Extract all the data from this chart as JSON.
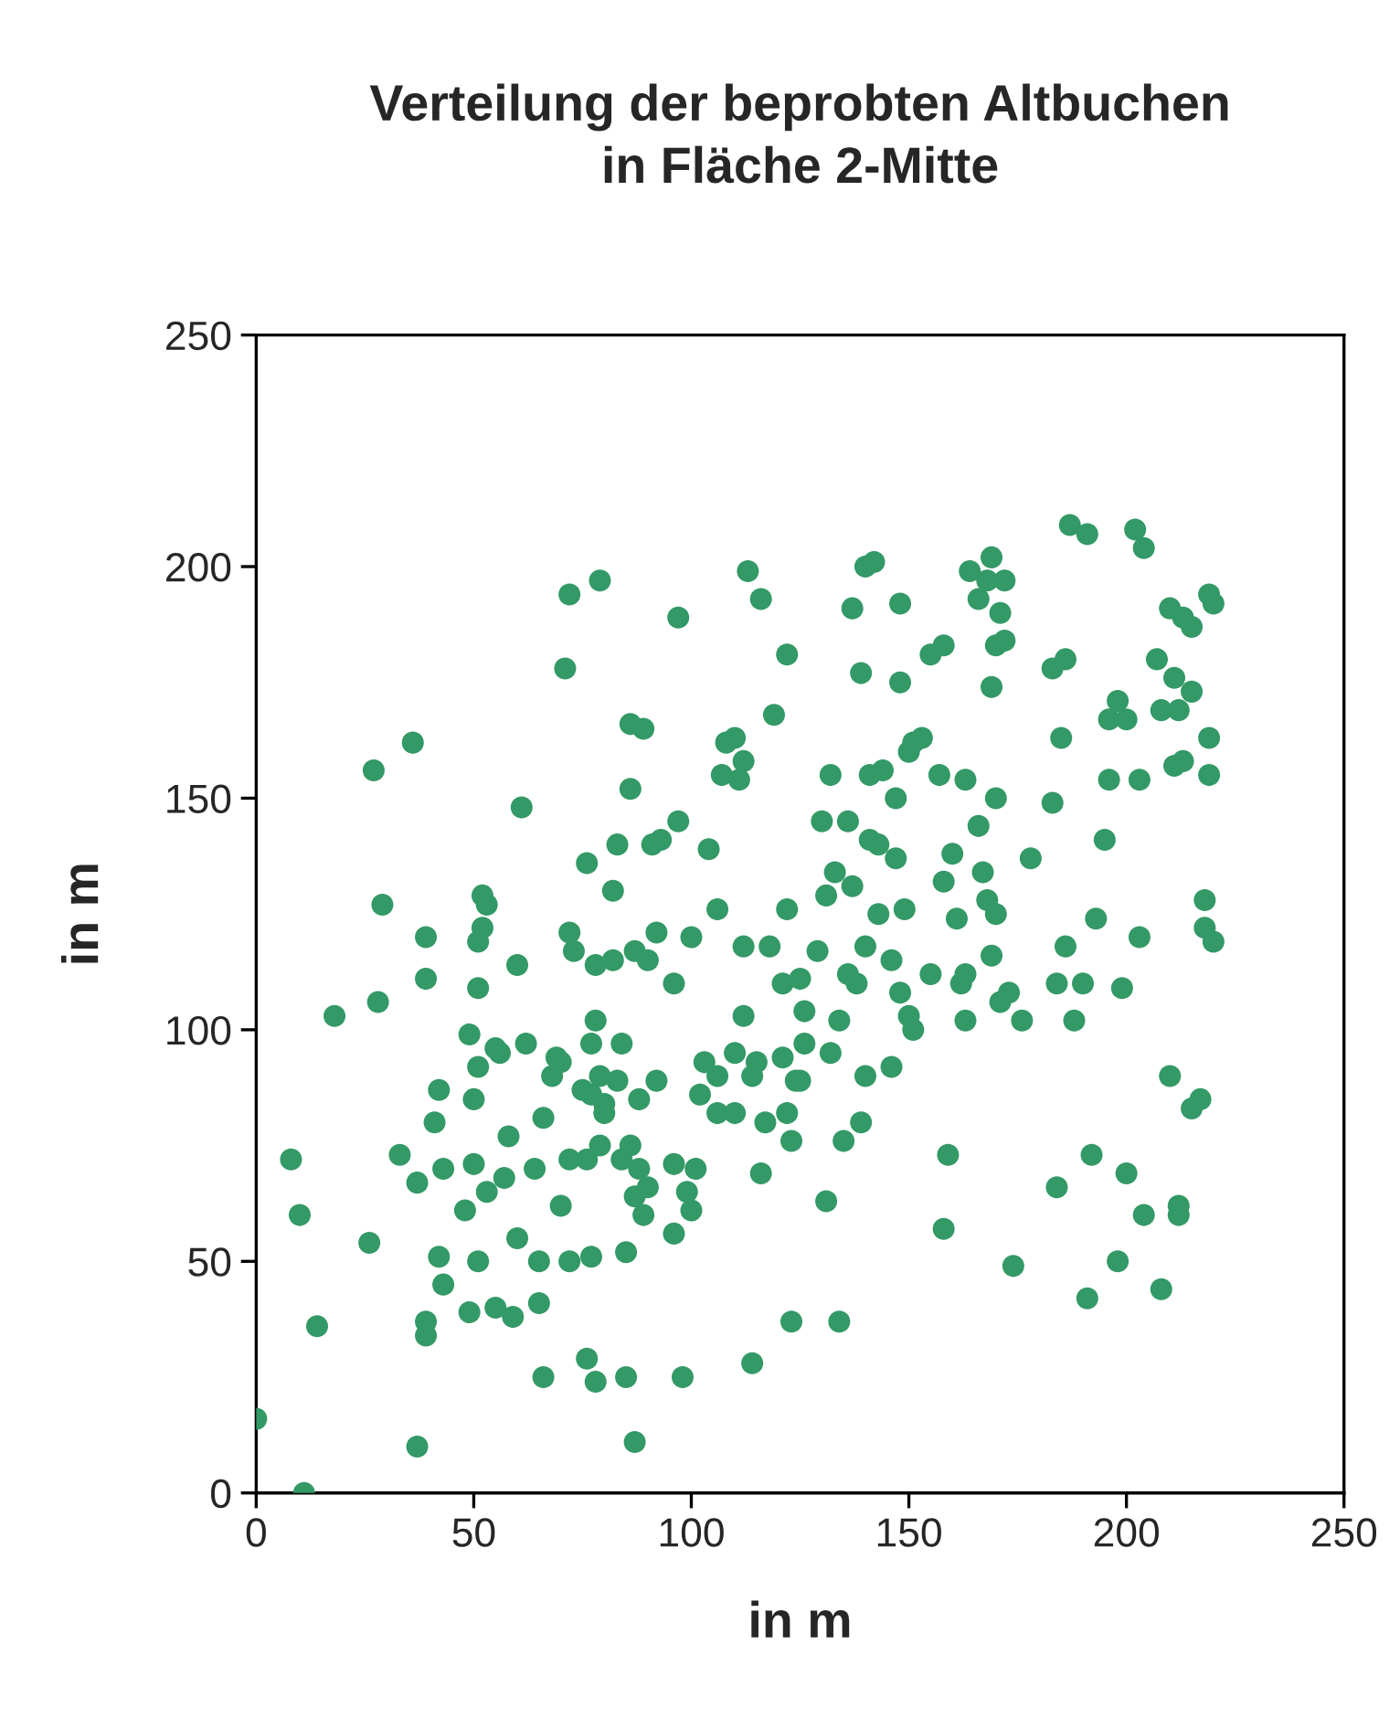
{
  "chart_data": {
    "type": "scatter",
    "title": "Verteilung der beprobten Altbuchen\nin Fläche 2-Mitte",
    "xlabel": "in m",
    "ylabel": "in m",
    "xlim": [
      0,
      250
    ],
    "ylim": [
      0,
      250
    ],
    "xticks": [
      0,
      50,
      100,
      150,
      200,
      250
    ],
    "yticks": [
      0,
      50,
      100,
      150,
      200,
      250
    ],
    "grid": false,
    "marker": "circle",
    "series": [
      {
        "color": "#339966",
        "x": [
          72,
          79,
          71,
          97,
          113,
          116,
          137,
          140,
          142,
          139,
          148,
          122,
          148,
          155,
          158,
          164,
          166,
          168,
          169,
          171,
          172,
          169,
          170,
          172,
          183,
          187,
          191,
          202,
          204,
          186,
          207,
          210,
          213,
          215,
          215,
          211,
          219,
          220,
          208,
          212,
          196,
          198,
          200,
          36,
          27,
          61,
          86,
          89,
          86,
          83,
          91,
          108,
          110,
          112,
          107,
          111,
          104,
          119,
          130,
          132,
          150,
          147,
          144,
          151,
          153,
          157,
          141,
          141,
          136,
          147,
          163,
          170,
          166,
          185,
          183,
          196,
          195,
          203,
          211,
          213,
          219,
          219,
          76,
          82,
          97,
          93,
          29,
          28,
          18,
          39,
          39,
          52,
          53,
          52,
          51,
          60,
          55,
          51,
          62,
          70,
          72,
          73,
          78,
          87,
          90,
          92,
          100,
          96,
          106,
          112,
          110,
          112,
          118,
          121,
          122,
          126,
          129,
          131,
          133,
          136,
          138,
          134,
          140,
          143,
          146,
          148,
          149,
          150,
          151,
          155,
          158,
          160,
          161,
          162,
          163,
          167,
          168,
          169,
          170,
          171,
          173,
          176,
          178,
          184,
          186,
          188,
          190,
          193,
          199,
          203,
          218,
          218,
          220,
          143,
          137,
          125,
          115,
          132,
          121,
          163,
          8,
          10,
          26,
          33,
          37,
          41,
          42,
          43,
          42,
          43,
          48,
          50,
          50,
          51,
          49,
          51,
          53,
          57,
          58,
          56,
          60,
          64,
          65,
          66,
          68,
          69,
          72,
          70,
          75,
          77,
          76,
          79,
          80,
          80,
          79,
          83,
          77,
          78,
          82,
          84,
          84,
          86,
          87,
          88,
          89,
          88,
          90,
          92,
          96,
          96,
          99,
          101,
          102,
          103,
          100,
          106,
          106,
          110,
          114,
          117,
          116,
          122,
          123,
          124,
          126,
          131,
          135,
          139,
          140,
          146,
          159,
          158,
          174,
          184,
          192,
          191,
          198,
          200,
          204,
          208,
          210,
          212,
          212,
          215,
          217,
          125,
          0,
          11,
          14,
          37,
          39,
          39,
          55,
          49,
          59,
          65,
          66,
          76,
          78,
          85,
          87,
          98,
          114,
          123,
          134,
          72,
          77,
          85
        ],
        "values": [
          194,
          197,
          178,
          189,
          199,
          193,
          191,
          200,
          201,
          177,
          192,
          181,
          175,
          181,
          183,
          199,
          193,
          197,
          202,
          190,
          197,
          174,
          183,
          184,
          178,
          209,
          207,
          208,
          204,
          180,
          180,
          191,
          189,
          187,
          173,
          176,
          194,
          192,
          169,
          169,
          167,
          171,
          167,
          162,
          156,
          148,
          166,
          165,
          152,
          140,
          140,
          162,
          163,
          158,
          155,
          154,
          139,
          168,
          145,
          155,
          160,
          150,
          156,
          162,
          163,
          155,
          155,
          141,
          145,
          137,
          154,
          150,
          144,
          163,
          149,
          154,
          141,
          154,
          157,
          158,
          163,
          155,
          136,
          130,
          145,
          141,
          127,
          106,
          103,
          120,
          111,
          129,
          127,
          122,
          119,
          114,
          96,
          109,
          97,
          93,
          121,
          117,
          114,
          117,
          115,
          121,
          120,
          110,
          126,
          118,
          95,
          103,
          118,
          110,
          126,
          104,
          117,
          129,
          134,
          112,
          110,
          102,
          118,
          125,
          115,
          108,
          126,
          103,
          100,
          112,
          132,
          138,
          124,
          110,
          102,
          134,
          128,
          116,
          125,
          106,
          108,
          102,
          137,
          110,
          118,
          102,
          110,
          124,
          109,
          120,
          128,
          122,
          119,
          140,
          131,
          111,
          93,
          95,
          94,
          112,
          72,
          60,
          54,
          73,
          67,
          80,
          87,
          70,
          51,
          45,
          61,
          71,
          85,
          92,
          99,
          50,
          65,
          68,
          77,
          95,
          55,
          70,
          50,
          81,
          90,
          94,
          72,
          62,
          87,
          86,
          72,
          75,
          82,
          84,
          90,
          89,
          97,
          102,
          115,
          97,
          72,
          75,
          64,
          70,
          60,
          85,
          66,
          89,
          56,
          71,
          65,
          70,
          86,
          93,
          61,
          90,
          82,
          82,
          90,
          80,
          69,
          82,
          76,
          89,
          97,
          63,
          76,
          80,
          90,
          92,
          73,
          57,
          49,
          66,
          73,
          42,
          50,
          69,
          60,
          44,
          90,
          62,
          60,
          83,
          85,
          89,
          16,
          0,
          36,
          10,
          37,
          34,
          40,
          39,
          38,
          41,
          25,
          29,
          24,
          25,
          11,
          25,
          28,
          37,
          37,
          50,
          51,
          52
        ]
      }
    ]
  }
}
